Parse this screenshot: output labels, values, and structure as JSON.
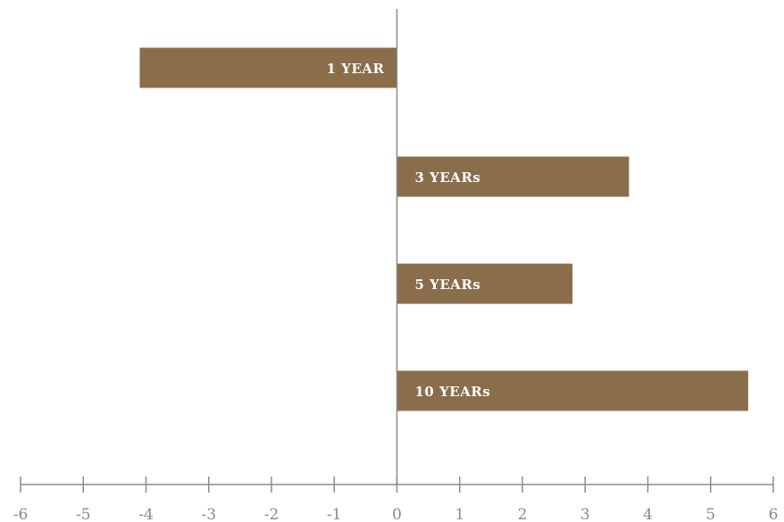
{
  "colors": {
    "bar": "#8a6d4b",
    "axis": "#8c8c8c",
    "tick_text": "#8a8a8a",
    "bar_text": "#ffffff"
  },
  "chart_data": {
    "type": "bar",
    "orientation": "horizontal",
    "title": "",
    "xlabel": "",
    "ylabel": "",
    "categories": [
      "1 YEAR",
      "3 YEARs",
      "5 YEARs",
      "10 YEARs"
    ],
    "values": [
      -4.1,
      3.7,
      2.8,
      5.6
    ],
    "xlim": [
      -6,
      6
    ],
    "x_ticks": [
      "-6",
      "-5",
      "-4",
      "-3",
      "-2",
      "-1",
      "0",
      "1",
      "2",
      "3",
      "4",
      "5",
      "6"
    ],
    "grid": false,
    "legend": "none"
  }
}
